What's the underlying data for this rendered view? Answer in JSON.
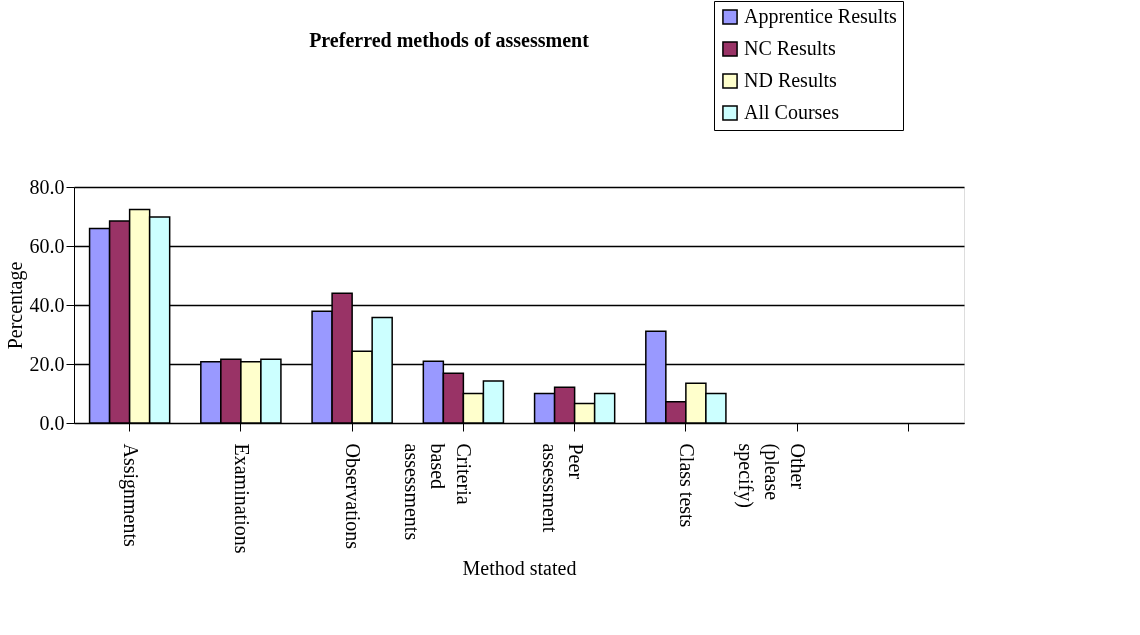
{
  "chart_data": {
    "type": "bar",
    "title": "Preferred methods of assessment",
    "xlabel": "Method stated",
    "ylabel": "Percentage",
    "categories": [
      "Assignments",
      "Examinations",
      "Observations",
      "Criteria based assessments",
      "Peer assessment",
      "Class tests",
      "Other (please specify)",
      null
    ],
    "series": [
      {
        "name": "Apprentice Results",
        "color": "#9999ff",
        "values": [
          65.9,
          20.8,
          37.9,
          20.9,
          10.0,
          31.1,
          null,
          null
        ]
      },
      {
        "name": "NC Results",
        "color": "#993366",
        "values": [
          68.5,
          21.6,
          44.0,
          16.9,
          12.1,
          7.2,
          null,
          null
        ]
      },
      {
        "name": "ND Results",
        "color": "#ffffcc",
        "values": [
          72.4,
          20.8,
          24.3,
          10.0,
          6.6,
          13.5,
          null,
          null
        ]
      },
      {
        "name": "All Courses",
        "color": "#ccffff",
        "values": [
          69.8,
          21.6,
          35.8,
          14.2,
          10.0,
          10.0,
          null,
          null
        ]
      }
    ],
    "ylim": [
      0,
      80
    ],
    "yticks": [
      {
        "value": 0,
        "label": "0.0"
      },
      {
        "value": 20,
        "label": "20.0"
      },
      {
        "value": 40,
        "label": "40.0"
      },
      {
        "value": 60,
        "label": "60.0"
      },
      {
        "value": 80,
        "label": "80.0"
      }
    ],
    "grid": "y",
    "legend": "top right"
  }
}
